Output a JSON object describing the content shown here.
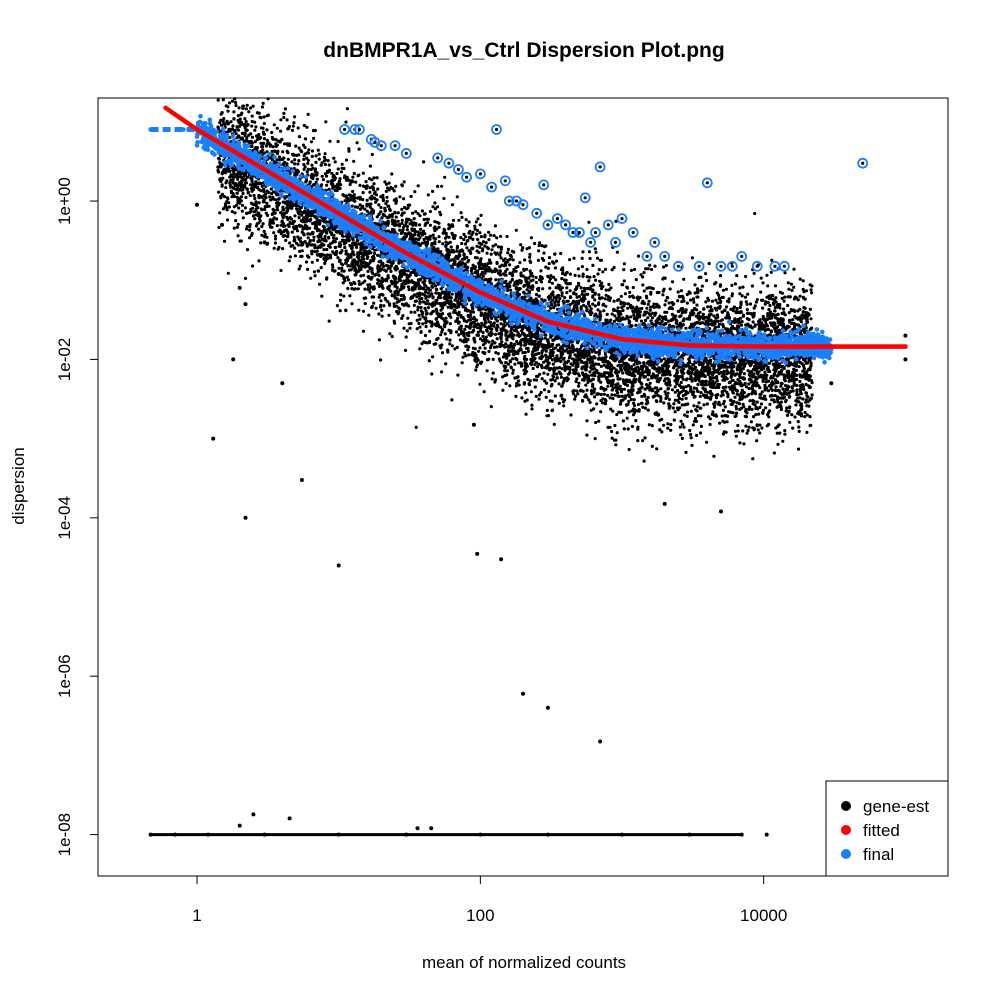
{
  "chart_data": {
    "type": "scatter",
    "title": "dnBMPR1A_vs_Ctrl Dispersion Plot.png",
    "xlabel": "mean of normalized counts",
    "ylabel": "dispersion",
    "x_scale": "log",
    "y_scale": "log",
    "xlim": [
      0.2,
      200000
    ],
    "ylim": [
      3e-09,
      20
    ],
    "x_ticks": [
      {
        "value": 1,
        "label": "1"
      },
      {
        "value": 100,
        "label": "100"
      },
      {
        "value": 10000,
        "label": "10000"
      }
    ],
    "y_ticks": [
      {
        "value": 1e-08,
        "label": "1e-08"
      },
      {
        "value": 1e-06,
        "label": "1e-06"
      },
      {
        "value": 0.0001,
        "label": "1e-04"
      },
      {
        "value": 0.01,
        "label": "1e-02"
      },
      {
        "value": 1,
        "label": "1e+00"
      }
    ],
    "grid": false,
    "legend_position": "bottom-right",
    "legend": [
      {
        "label": "gene-est",
        "color": "#000000"
      },
      {
        "label": "fitted",
        "color": "#ff0000"
      },
      {
        "label": "final",
        "color": "#1a7fff"
      }
    ],
    "series": [
      {
        "name": "gene-est",
        "color": "#000000",
        "points": [
          [
            0.47,
            1e-08
          ],
          [
            0.7,
            1e-08
          ],
          [
            1.2,
            1e-08
          ],
          [
            3,
            1e-08
          ],
          [
            10,
            1e-08
          ],
          [
            30,
            1e-08
          ],
          [
            100,
            1e-08
          ],
          [
            300,
            1e-08
          ],
          [
            1000,
            1e-08
          ],
          [
            3000,
            1e-08
          ],
          [
            7000,
            1e-08
          ],
          [
            10500,
            1e-08
          ],
          [
            2,
            1.3e-08
          ],
          [
            2.5,
            1.8e-08
          ],
          [
            4.5,
            1.6e-08
          ],
          [
            36,
            1.2e-08
          ],
          [
            45,
            1.2e-08
          ],
          [
            1.3,
            0.001
          ],
          [
            2.2,
            0.0001
          ],
          [
            5.5,
            0.0003
          ],
          [
            10,
            2.5e-05
          ],
          [
            90,
            0.0015
          ],
          [
            95,
            3.5e-05
          ],
          [
            140,
            3e-05
          ],
          [
            200,
            6e-07
          ],
          [
            300,
            4e-07
          ],
          [
            700,
            1.5e-07
          ],
          [
            1800,
            0.002
          ],
          [
            5000,
            0.00012
          ],
          [
            2000,
            0.00015
          ],
          [
            1,
            0.9
          ],
          [
            1.5,
            0.5
          ],
          [
            3,
            0.3
          ],
          [
            10,
            0.12
          ],
          [
            30,
            0.05
          ],
          [
            100,
            0.025
          ],
          [
            300,
            0.015
          ],
          [
            1000,
            0.012
          ],
          [
            3000,
            0.008
          ],
          [
            10000,
            0.006
          ],
          [
            30000,
            0.005
          ],
          [
            100000,
            0.02
          ],
          [
            100000,
            0.01
          ],
          [
            2,
            0.08
          ],
          [
            1.8,
            0.01
          ],
          [
            4,
            0.005
          ],
          [
            2.2,
            0.05
          ]
        ]
      },
      {
        "name": "fitted",
        "color": "#ff0000",
        "points": [
          [
            0.6,
            15
          ],
          [
            1,
            8
          ],
          [
            3,
            2.5
          ],
          [
            10,
            0.7
          ],
          [
            30,
            0.22
          ],
          [
            100,
            0.07
          ],
          [
            300,
            0.03
          ],
          [
            1000,
            0.018
          ],
          [
            3000,
            0.015
          ],
          [
            10000,
            0.0145
          ],
          [
            30000,
            0.0145
          ],
          [
            100000,
            0.0145
          ]
        ]
      },
      {
        "name": "final",
        "color": "#1a7fff",
        "points": [
          [
            0.47,
            8
          ],
          [
            0.8,
            8
          ],
          [
            1,
            8
          ],
          [
            1.5,
            5
          ],
          [
            3,
            2
          ],
          [
            10,
            0.7
          ],
          [
            30,
            0.2
          ],
          [
            100,
            0.07
          ],
          [
            300,
            0.03
          ],
          [
            1000,
            0.018
          ],
          [
            3000,
            0.015
          ],
          [
            10000,
            0.0145
          ],
          [
            30000,
            0.0145
          ],
          [
            100000,
            0.0145
          ]
        ],
        "outliers": [
          [
            11,
            8
          ],
          [
            13,
            8
          ],
          [
            14,
            8
          ],
          [
            17,
            6
          ],
          [
            18,
            5.5
          ],
          [
            20,
            5
          ],
          [
            25,
            5
          ],
          [
            30,
            4
          ],
          [
            50,
            3.5
          ],
          [
            60,
            3
          ],
          [
            70,
            2.5
          ],
          [
            80,
            2
          ],
          [
            100,
            2.2
          ],
          [
            120,
            1.5
          ],
          [
            130,
            8
          ],
          [
            150,
            1.8
          ],
          [
            160,
            1
          ],
          [
            180,
            1
          ],
          [
            200,
            0.9
          ],
          [
            250,
            0.7
          ],
          [
            280,
            1.6
          ],
          [
            300,
            0.5
          ],
          [
            350,
            0.6
          ],
          [
            400,
            0.5
          ],
          [
            450,
            0.4
          ],
          [
            500,
            0.4
          ],
          [
            550,
            1.1
          ],
          [
            600,
            0.3
          ],
          [
            650,
            0.4
          ],
          [
            700,
            2.7
          ],
          [
            800,
            0.5
          ],
          [
            900,
            0.3
          ],
          [
            1000,
            0.6
          ],
          [
            1200,
            0.4
          ],
          [
            1500,
            0.2
          ],
          [
            1700,
            0.3
          ],
          [
            2000,
            0.2
          ],
          [
            2500,
            0.15
          ],
          [
            3500,
            0.15
          ],
          [
            4000,
            1.7
          ],
          [
            5000,
            0.15
          ],
          [
            6000,
            0.15
          ],
          [
            7000,
            0.2
          ],
          [
            9000,
            0.15
          ],
          [
            12000,
            0.15
          ],
          [
            14000,
            0.15
          ],
          [
            50000,
            3
          ]
        ]
      }
    ]
  }
}
